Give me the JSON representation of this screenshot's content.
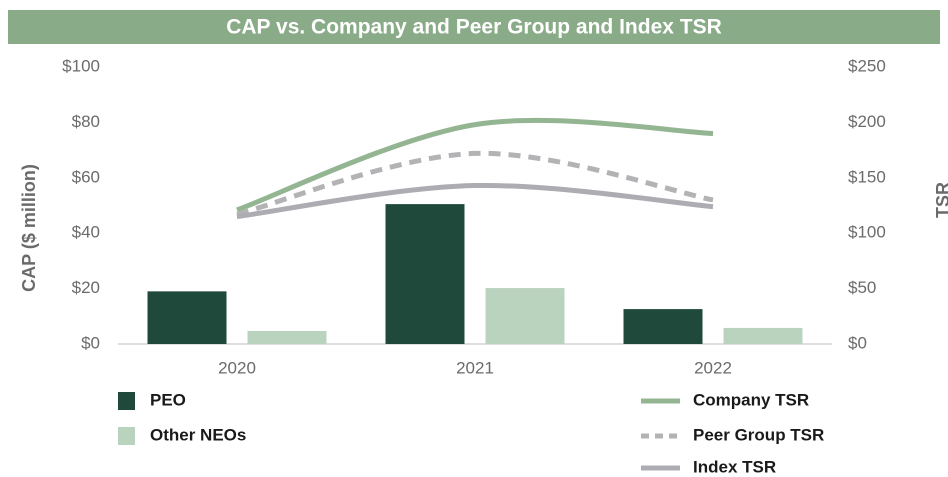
{
  "chart_data": {
    "type": "bar",
    "title": "CAP vs. Company and Peer Group and Index TSR",
    "y_label": "CAP ($ million)",
    "y2_label": "TSR",
    "categories": [
      "2020",
      "2021",
      "2022"
    ],
    "ylim": [
      0,
      100
    ],
    "yticks": [
      {
        "value": 0,
        "label": "$0"
      },
      {
        "value": 20,
        "label": "$20"
      },
      {
        "value": 40,
        "label": "$40"
      },
      {
        "value": 60,
        "label": "$60"
      },
      {
        "value": 80,
        "label": "$80"
      },
      {
        "value": 100,
        "label": "$100"
      }
    ],
    "y2lim": [
      0,
      250
    ],
    "y2ticks": [
      {
        "value": 0,
        "label": "$0"
      },
      {
        "value": 50,
        "label": "$50"
      },
      {
        "value": 100,
        "label": "$100"
      },
      {
        "value": 150,
        "label": "$150"
      },
      {
        "value": 200,
        "label": "$200"
      },
      {
        "value": 250,
        "label": "$250"
      }
    ],
    "series": [
      {
        "name": "PEO",
        "type": "bar",
        "color": "#1f4a3b",
        "values": [
          19,
          50.5,
          12.6
        ]
      },
      {
        "name": "Other NEOs",
        "type": "bar",
        "color": "#bad3bf",
        "values": [
          4.7,
          20.2,
          5.8
        ]
      },
      {
        "name": "Company TSR",
        "type": "line",
        "axis": "y2",
        "color": "#93b592",
        "dash": false,
        "values": [
          121,
          198,
          190
        ]
      },
      {
        "name": "Peer Group TSR",
        "type": "line",
        "axis": "y2",
        "color": "#b3b3b6",
        "dash": true,
        "values": [
          117,
          172,
          130
        ]
      },
      {
        "name": "Index TSR",
        "type": "line",
        "axis": "y2",
        "color": "#acacb2",
        "dash": false,
        "values": [
          115,
          143,
          124
        ]
      }
    ]
  }
}
